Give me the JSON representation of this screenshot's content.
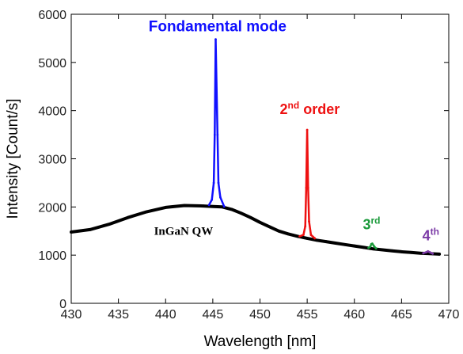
{
  "chart_data": {
    "type": "line",
    "xlabel": "Wavelength [nm]",
    "ylabel": "Intensity [Count/s]",
    "xlim": [
      430,
      470
    ],
    "ylim": [
      0,
      6000
    ],
    "xticks": [
      430,
      435,
      440,
      445,
      450,
      455,
      460,
      465,
      470
    ],
    "yticks": [
      0,
      1000,
      2000,
      3000,
      4000,
      5000,
      6000
    ],
    "grid": false,
    "series": [
      {
        "color": "#000000",
        "x": [
          430,
          432,
          434,
          436,
          438,
          440,
          442,
          444,
          445,
          446,
          447,
          448,
          449,
          450,
          451,
          452,
          453,
          454,
          455,
          456,
          457,
          458,
          459,
          460,
          461,
          462,
          463,
          464,
          465,
          466,
          467,
          468,
          469
        ],
        "values": [
          1480,
          1530,
          1640,
          1780,
          1900,
          1990,
          2030,
          2020,
          2010,
          2000,
          1950,
          1870,
          1780,
          1680,
          1590,
          1500,
          1440,
          1390,
          1350,
          1310,
          1280,
          1250,
          1220,
          1190,
          1160,
          1130,
          1110,
          1090,
          1070,
          1055,
          1040,
          1030,
          1020
        ]
      },
      {
        "color": "#1010ff",
        "x": [
          444.6,
          444.9,
          445.1,
          445.2,
          445.3,
          445.5,
          445.6,
          445.8,
          446.2
        ],
        "values": [
          2040,
          2150,
          2500,
          3500,
          5480,
          3500,
          2500,
          2200,
          2010
        ]
      },
      {
        "color": "#ee1111",
        "x": [
          454.2,
          454.6,
          454.8,
          454.9,
          455.0,
          455.1,
          455.2,
          455.4,
          455.8
        ],
        "values": [
          1390,
          1420,
          1600,
          2400,
          3600,
          2400,
          1700,
          1420,
          1350
        ]
      },
      {
        "color": "#1a9a3a",
        "x": [
          461.5,
          461.7,
          461.8,
          461.9,
          462.1,
          462.3
        ],
        "values": [
          1150,
          1180,
          1230,
          1240,
          1180,
          1140
        ]
      },
      {
        "color": "#7b3aa6",
        "x": [
          467.3,
          467.6,
          467.8,
          468.0,
          468.3
        ],
        "values": [
          1040,
          1060,
          1080,
          1060,
          1030
        ]
      }
    ],
    "annotations": [
      {
        "text": "Fondamental mode",
        "sup": "",
        "color": "#1010ff",
        "x": 445.5,
        "y": 5650
      },
      {
        "text": "2",
        "sup": "nd",
        "suffix": " order",
        "color": "#ee1111",
        "x": 452.1,
        "y": 3930
      },
      {
        "text": "3",
        "sup": "rd",
        "suffix": "",
        "color": "#1a9a3a",
        "x": 460.9,
        "y": 1540
      },
      {
        "text": "4",
        "sup": "th",
        "suffix": "",
        "color": "#7b3aa6",
        "x": 467.2,
        "y": 1310
      },
      {
        "text": "InGaN QW",
        "sup": "",
        "color": "#000000",
        "x": 441.9,
        "y": 1420
      }
    ]
  }
}
